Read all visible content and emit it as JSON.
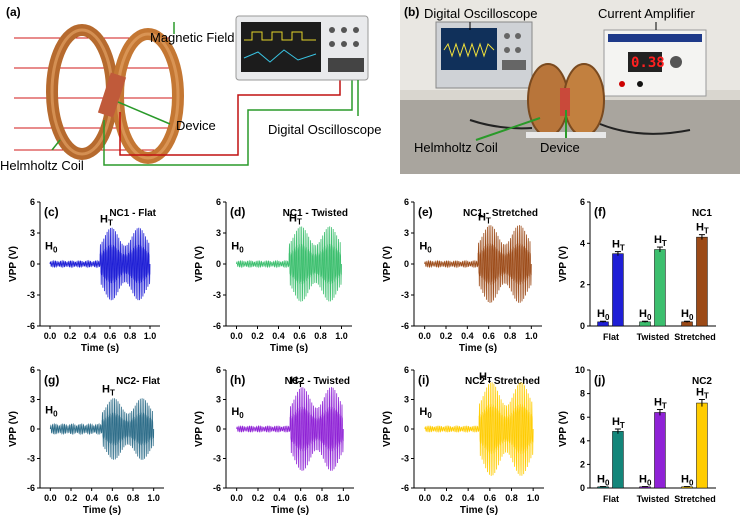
{
  "panel_a": {
    "label": "(a)",
    "magnetic_field": "Magnetic Field",
    "device": "Device",
    "helmholtz_coil": "Helmholtz Coil",
    "digital_oscilloscope": "Digital Oscilloscope"
  },
  "panel_b": {
    "label": "(b)",
    "digital_oscilloscope": "Digital Oscilloscope",
    "current_amplifier": "Current Amplifier",
    "helmholtz_coil": "Helmholtz Coil",
    "device": "Device",
    "display_value": "0.38"
  },
  "colors": {
    "flat_nc1": "#1f1fd6",
    "twisted_nc1": "#3cbf6e",
    "stretched_nc1": "#9c4a17",
    "flat_nc2": "#2f6e8a",
    "twisted_nc2": "#8f22d6",
    "stretched_nc2": "#ffcc00",
    "bar_flat_nc2": "#13867a",
    "bar_twisted_nc2": "#8f22d6",
    "bar_stretched_nc2": "#ffcc00"
  },
  "chart_data": [
    {
      "id": "c",
      "type": "line",
      "label": "(c)",
      "title": "NC1 - Flat",
      "xlabel": "Time (s)",
      "ylabel": "VPP (V)",
      "xlim": [
        -0.1,
        1.1
      ],
      "ylim": [
        -6,
        6
      ],
      "xticks": [
        "0.0",
        "0.2",
        "0.4",
        "0.6",
        "0.8",
        "1.0"
      ],
      "yticks": [
        "-6",
        "-3",
        "0",
        "3",
        "6"
      ],
      "h0_amp": 0.3,
      "ht_amp": 2.8,
      "switch_time": 0.5,
      "series_color": "#1f1fd6",
      "h0_label": "H0",
      "ht_label": "HT"
    },
    {
      "id": "d",
      "type": "line",
      "label": "(d)",
      "title": "NC1 - Twisted",
      "xlabel": "Time (s)",
      "ylabel": "VPP (V)",
      "xlim": [
        -0.1,
        1.1
      ],
      "ylim": [
        -6,
        6
      ],
      "xticks": [
        "0.0",
        "0.2",
        "0.4",
        "0.6",
        "0.8",
        "1.0"
      ],
      "yticks": [
        "-6",
        "-3",
        "0",
        "3",
        "6"
      ],
      "h0_amp": 0.3,
      "ht_amp": 2.9,
      "switch_time": 0.5,
      "series_color": "#3cbf6e",
      "h0_label": "H0",
      "ht_label": "HT"
    },
    {
      "id": "e",
      "type": "line",
      "label": "(e)",
      "title": "NC1 - Stretched",
      "xlabel": "Time (s)",
      "ylabel": "VPP (V)",
      "xlim": [
        -0.1,
        1.1
      ],
      "ylim": [
        -6,
        6
      ],
      "xticks": [
        "0.0",
        "0.2",
        "0.4",
        "0.6",
        "0.8",
        "1.0"
      ],
      "yticks": [
        "-6",
        "-3",
        "0",
        "3",
        "6"
      ],
      "h0_amp": 0.3,
      "ht_amp": 3.0,
      "switch_time": 0.5,
      "series_color": "#9c4a17",
      "h0_label": "H0",
      "ht_label": "HT"
    },
    {
      "id": "f",
      "type": "bar",
      "label": "(f)",
      "title": "NC1",
      "ylabel": "VPP (V)",
      "ylim": [
        0,
        6
      ],
      "yticks": [
        "0",
        "2",
        "4",
        "6"
      ],
      "categories": [
        "Flat",
        "Twisted",
        "Stretched"
      ],
      "series": [
        {
          "name": "H0",
          "values": [
            0.2,
            0.2,
            0.2
          ],
          "errors": [
            0.03,
            0.03,
            0.03
          ],
          "colors": [
            "#1f1fd6",
            "#3cbf6e",
            "#9c4a17"
          ]
        },
        {
          "name": "HT",
          "values": [
            3.5,
            3.7,
            4.3
          ],
          "errors": [
            0.1,
            0.12,
            0.12
          ],
          "colors": [
            "#1f1fd6",
            "#3cbf6e",
            "#9c4a17"
          ]
        }
      ]
    },
    {
      "id": "g",
      "type": "line",
      "label": "(g)",
      "title": "NC2- Flat",
      "xlabel": "Time (s)",
      "ylabel": "VPP (V)",
      "xlim": [
        -0.1,
        1.1
      ],
      "ylim": [
        -6,
        6
      ],
      "xticks": [
        "0.0",
        "0.2",
        "0.4",
        "0.6",
        "0.8",
        "1.0"
      ],
      "yticks": [
        "-6",
        "-3",
        "0",
        "3",
        "6"
      ],
      "h0_amp": 0.5,
      "ht_amp": 2.5,
      "switch_time": 0.5,
      "series_color": "#2f6e8a",
      "h0_label": "H0",
      "ht_label": "HT"
    },
    {
      "id": "h",
      "type": "line",
      "label": "(h)",
      "title": "NC2 - Twisted",
      "xlabel": "Time (s)",
      "ylabel": "VPP (V)",
      "xlim": [
        -0.1,
        1.1
      ],
      "ylim": [
        -6,
        6
      ],
      "xticks": [
        "0.0",
        "0.2",
        "0.4",
        "0.6",
        "0.8",
        "1.0"
      ],
      "yticks": [
        "-6",
        "-3",
        "0",
        "3",
        "6"
      ],
      "h0_amp": 0.3,
      "ht_amp": 3.4,
      "switch_time": 0.5,
      "series_color": "#8f22d6",
      "h0_label": "H0",
      "ht_label": "HT"
    },
    {
      "id": "i",
      "type": "line",
      "label": "(i)",
      "title": "NC2 - Stretched",
      "xlabel": "Time (s)",
      "ylabel": "VPP (V)",
      "xlim": [
        -0.1,
        1.1
      ],
      "ylim": [
        -6,
        6
      ],
      "xticks": [
        "0.0",
        "0.2",
        "0.4",
        "0.6",
        "0.8",
        "1.0"
      ],
      "yticks": [
        "-6",
        "-3",
        "0",
        "3",
        "6"
      ],
      "h0_amp": 0.3,
      "ht_amp": 3.8,
      "switch_time": 0.5,
      "series_color": "#ffcc00",
      "h0_label": "H0",
      "ht_label": "HT"
    },
    {
      "id": "j",
      "type": "bar",
      "label": "(j)",
      "title": "NC2",
      "ylabel": "VPP (V)",
      "ylim": [
        0,
        10
      ],
      "yticks": [
        "0",
        "2",
        "4",
        "6",
        "8",
        "10"
      ],
      "categories": [
        "Flat",
        "Twisted",
        "Stretched"
      ],
      "series": [
        {
          "name": "H0",
          "values": [
            0.1,
            0.1,
            0.1
          ],
          "errors": [
            0.02,
            0.02,
            0.02
          ],
          "colors": [
            "#13867a",
            "#8f22d6",
            "#ffcc00"
          ]
        },
        {
          "name": "HT",
          "values": [
            4.8,
            6.4,
            7.2
          ],
          "errors": [
            0.2,
            0.25,
            0.3
          ],
          "colors": [
            "#13867a",
            "#8f22d6",
            "#ffcc00"
          ]
        }
      ]
    }
  ]
}
